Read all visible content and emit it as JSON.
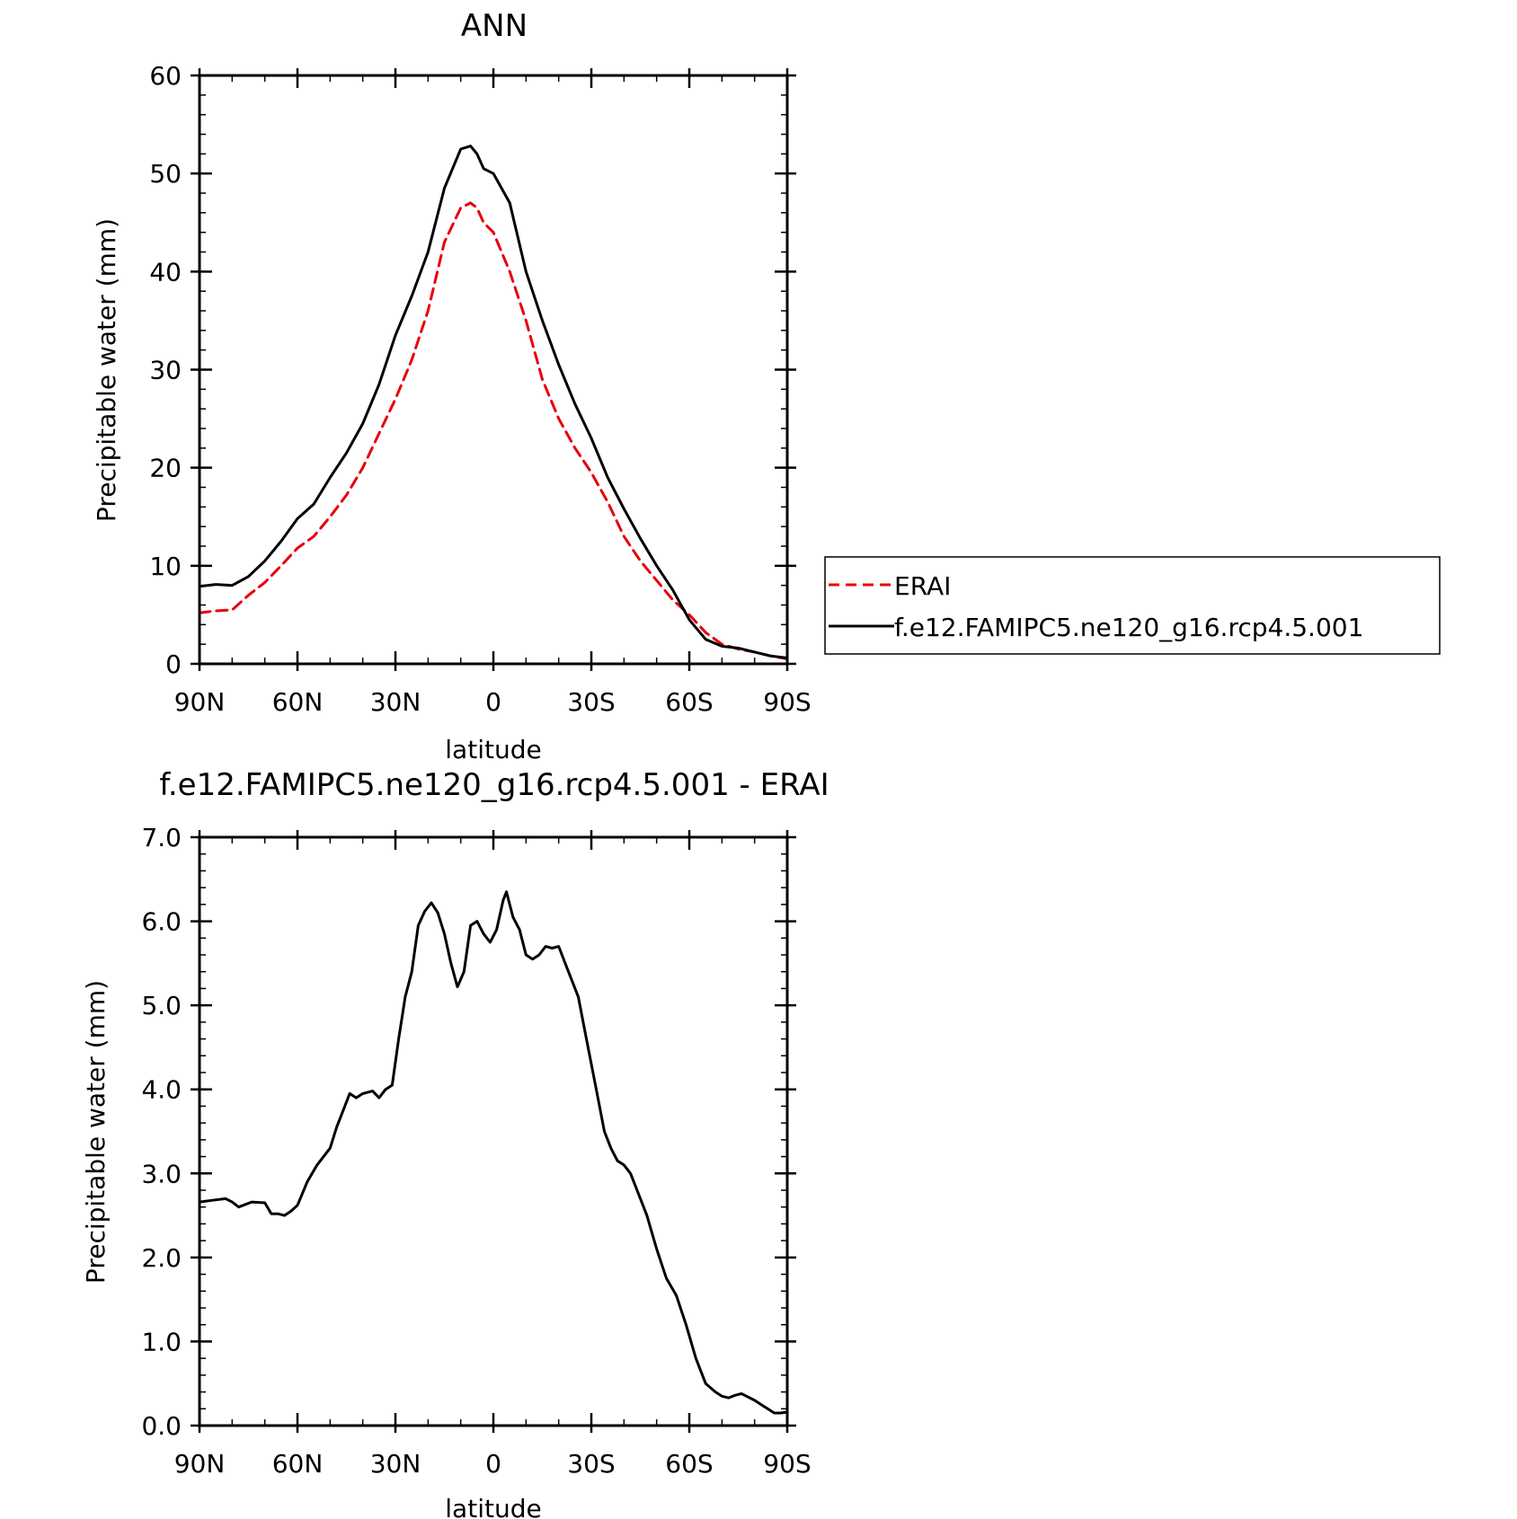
{
  "chart_data": [
    {
      "type": "line",
      "title": "ANN",
      "xlabel": "latitude",
      "ylabel": "Precipitable water (mm)",
      "xlim": [
        90,
        -90
      ],
      "ylim": [
        0,
        60
      ],
      "x_ticks": [
        90,
        60,
        30,
        0,
        -30,
        -60,
        -90
      ],
      "x_tick_labels": [
        "90N",
        "60N",
        "30N",
        "0",
        "30S",
        "60S",
        "90S"
      ],
      "y_ticks": [
        0,
        10,
        20,
        30,
        40,
        50,
        60
      ],
      "y_tick_labels": [
        "0",
        "10",
        "20",
        "30",
        "40",
        "50",
        "60"
      ],
      "legend_position": "right",
      "series": [
        {
          "name": "ERAI",
          "color": "#e8000b",
          "dash": "dashed",
          "x": [
            90,
            85,
            80,
            75,
            70,
            65,
            60,
            55,
            50,
            45,
            40,
            35,
            30,
            25,
            20,
            15,
            10,
            7,
            5,
            3,
            0,
            -5,
            -10,
            -15,
            -20,
            -25,
            -30,
            -35,
            -40,
            -45,
            -50,
            -55,
            -60,
            -65,
            -70,
            -75,
            -80,
            -85,
            -90
          ],
          "y": [
            5.2,
            5.4,
            5.5,
            7.0,
            8.3,
            10.0,
            11.8,
            13.0,
            15.0,
            17.2,
            20.0,
            23.5,
            27.0,
            31.0,
            36.0,
            43.0,
            46.5,
            47.0,
            46.5,
            45.0,
            44.0,
            40.0,
            35.0,
            29.0,
            25.0,
            22.0,
            19.5,
            16.5,
            13.0,
            10.5,
            8.5,
            6.5,
            5.0,
            3.2,
            2.0,
            1.5,
            1.2,
            0.8,
            0.5
          ]
        },
        {
          "name": "f.e12.FAMIPC5.ne120_g16.rcp4.5.001",
          "color": "#000000",
          "dash": "solid",
          "x": [
            90,
            85,
            80,
            75,
            70,
            65,
            60,
            55,
            50,
            45,
            40,
            35,
            30,
            25,
            20,
            15,
            10,
            7,
            5,
            3,
            0,
            -5,
            -10,
            -15,
            -20,
            -25,
            -30,
            -35,
            -40,
            -45,
            -50,
            -55,
            -60,
            -65,
            -70,
            -75,
            -80,
            -85,
            -90
          ],
          "y": [
            7.9,
            8.1,
            8.0,
            8.9,
            10.5,
            12.5,
            14.8,
            16.3,
            19.0,
            21.5,
            24.5,
            28.5,
            33.5,
            37.5,
            42.0,
            48.5,
            52.5,
            52.8,
            52.0,
            50.5,
            50.0,
            47.0,
            40.0,
            35.0,
            30.5,
            26.5,
            23.0,
            19.0,
            15.8,
            12.8,
            10.0,
            7.5,
            4.5,
            2.5,
            1.8,
            1.6,
            1.2,
            0.8,
            0.6
          ]
        }
      ]
    },
    {
      "type": "line",
      "title": "f.e12.FAMIPC5.ne120_g16.rcp4.5.001 - ERAI",
      "xlabel": "latitude",
      "ylabel": "Precipitable water (mm)",
      "xlim": [
        90,
        -90
      ],
      "ylim": [
        0,
        7
      ],
      "x_ticks": [
        90,
        60,
        30,
        0,
        -30,
        -60,
        -90
      ],
      "x_tick_labels": [
        "90N",
        "60N",
        "30N",
        "0",
        "30S",
        "60S",
        "90S"
      ],
      "y_ticks": [
        0,
        1,
        2,
        3,
        4,
        5,
        6,
        7
      ],
      "y_tick_labels": [
        "0.0",
        "1.0",
        "2.0",
        "3.0",
        "4.0",
        "5.0",
        "6.0",
        "7.0"
      ],
      "series": [
        {
          "color": "#000000",
          "dash": "solid",
          "x": [
            90,
            86,
            82,
            80,
            78,
            74,
            70,
            68,
            66,
            64,
            62,
            60,
            57,
            54,
            50,
            48,
            46,
            44,
            42,
            40,
            37,
            35,
            33,
            31,
            29,
            27,
            25,
            23,
            21,
            19,
            17,
            15,
            13,
            11,
            9,
            7,
            5,
            3,
            1,
            -1,
            -3,
            -4,
            -6,
            -8,
            -10,
            -12,
            -14,
            -16,
            -18,
            -20,
            -22,
            -24,
            -26,
            -28,
            -30,
            -32,
            -34,
            -36,
            -38,
            -40,
            -42,
            -44,
            -47,
            -50,
            -53,
            -56,
            -59,
            -62,
            -65,
            -68,
            -70,
            -72,
            -74,
            -76,
            -78,
            -80,
            -82,
            -84,
            -86,
            -88,
            -90
          ],
          "y": [
            2.66,
            2.68,
            2.7,
            2.66,
            2.6,
            2.66,
            2.65,
            2.52,
            2.52,
            2.5,
            2.55,
            2.62,
            2.9,
            3.1,
            3.3,
            3.55,
            3.75,
            3.95,
            3.9,
            3.95,
            3.98,
            3.9,
            4.0,
            4.05,
            4.6,
            5.1,
            5.4,
            5.95,
            6.12,
            6.22,
            6.1,
            5.85,
            5.5,
            5.22,
            5.4,
            5.95,
            6.0,
            5.85,
            5.75,
            5.9,
            6.25,
            6.35,
            6.05,
            5.9,
            5.6,
            5.55,
            5.6,
            5.7,
            5.68,
            5.7,
            5.5,
            5.3,
            5.1,
            4.7,
            4.3,
            3.9,
            3.5,
            3.3,
            3.15,
            3.1,
            3.0,
            2.8,
            2.5,
            2.1,
            1.75,
            1.55,
            1.2,
            0.8,
            0.5,
            0.4,
            0.35,
            0.33,
            0.36,
            0.38,
            0.34,
            0.3,
            0.25,
            0.2,
            0.15,
            0.15,
            0.16
          ]
        }
      ]
    }
  ]
}
